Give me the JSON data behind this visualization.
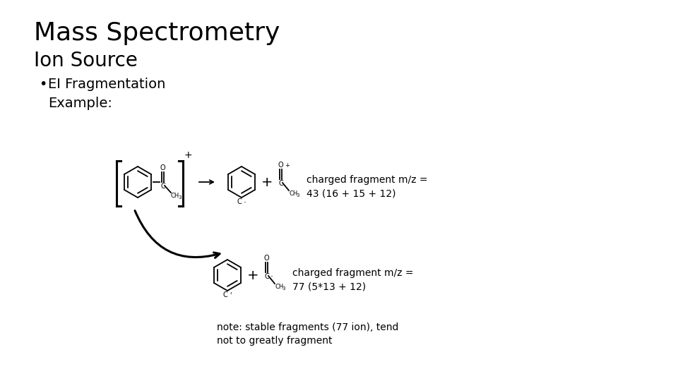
{
  "title_line1": "Mass Spectrometry",
  "title_line2": "Ion Source",
  "fragment1_label": "charged fragment m/z =\n43 (16 + 15 + 12)",
  "fragment2_label": "charged fragment m/z =\n77 (5*13 + 12)",
  "note_text": "note: stable fragments (77 ion), tend\nnot to greatly fragment",
  "bg_color": "#ffffff",
  "text_color": "#000000",
  "title1_fontsize": 26,
  "title2_fontsize": 20,
  "bullet_fontsize": 14,
  "frag_fontsize": 10,
  "note_fontsize": 10
}
